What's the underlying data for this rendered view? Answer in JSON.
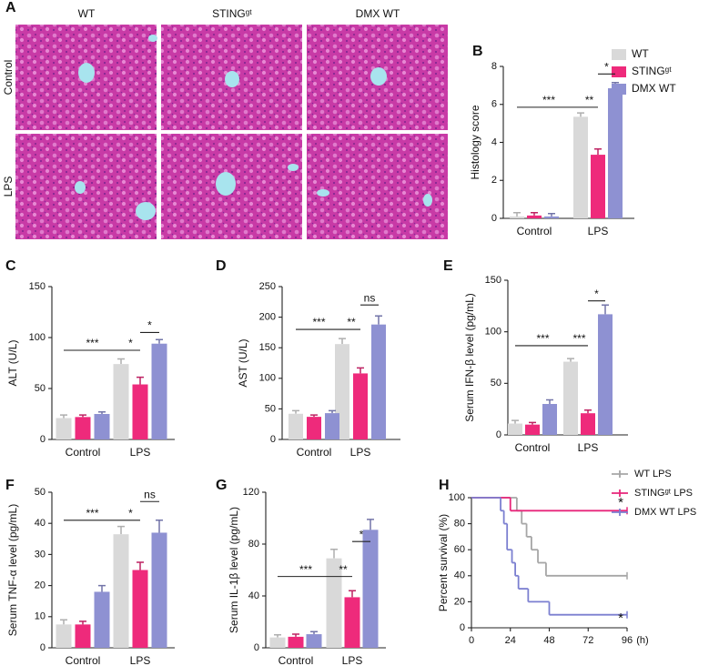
{
  "panel_a": {
    "label": "A",
    "columns": [
      "WT",
      "STINGᵍᵗ",
      "DMX WT"
    ],
    "rows": [
      "Control",
      "LPS"
    ]
  },
  "chart_data": [
    {
      "type": "bar",
      "panel": "B",
      "ylabel": "Histology score",
      "categories": [
        "Control",
        "LPS"
      ],
      "series": [
        {
          "name": "WT",
          "color": "#d9d9d9",
          "values": [
            0.1,
            5.35
          ],
          "errors": [
            0.2,
            0.2
          ]
        },
        {
          "name": "STINGᵍᵗ",
          "color": "#ee2a7b",
          "values": [
            0.15,
            3.35
          ],
          "errors": [
            0.15,
            0.3
          ]
        },
        {
          "name": "DMX WT",
          "color": "#8e91d2",
          "values": [
            0.1,
            6.85
          ],
          "errors": [
            0.15,
            0.3
          ]
        }
      ],
      "ylim": [
        0,
        8
      ],
      "yticks": [
        0,
        2,
        4,
        6,
        8
      ],
      "annotations": [
        "***",
        "**",
        "*"
      ]
    },
    {
      "type": "bar",
      "panel": "C",
      "ylabel": "ALT (U/L)",
      "categories": [
        "Control",
        "LPS"
      ],
      "series": [
        {
          "color": "#d9d9d9",
          "values": [
            21,
            74
          ],
          "errors": [
            3,
            5
          ]
        },
        {
          "color": "#ee2a7b",
          "values": [
            22,
            54
          ],
          "errors": [
            2,
            7
          ]
        },
        {
          "color": "#8e91d2",
          "values": [
            25,
            94
          ],
          "errors": [
            2,
            4
          ]
        }
      ],
      "ylim": [
        0,
        150
      ],
      "yticks": [
        0,
        50,
        100,
        150
      ],
      "annotations": [
        "***",
        "*",
        "*"
      ]
    },
    {
      "type": "bar",
      "panel": "D",
      "ylabel": "AST (U/L)",
      "categories": [
        "Control",
        "LPS"
      ],
      "series": [
        {
          "color": "#d9d9d9",
          "values": [
            42,
            156
          ],
          "errors": [
            5,
            9
          ]
        },
        {
          "color": "#ee2a7b",
          "values": [
            37,
            108
          ],
          "errors": [
            3,
            9
          ]
        },
        {
          "color": "#8e91d2",
          "values": [
            43,
            188
          ],
          "errors": [
            4,
            14
          ]
        }
      ],
      "ylim": [
        0,
        250
      ],
      "yticks": [
        0,
        50,
        100,
        150,
        200,
        250
      ],
      "annotations": [
        "***",
        "**",
        "ns"
      ]
    },
    {
      "type": "bar",
      "panel": "E",
      "ylabel": "Serum IFN-β level (pg/mL)",
      "categories": [
        "Control",
        "LPS"
      ],
      "series": [
        {
          "color": "#d9d9d9",
          "values": [
            11,
            71
          ],
          "errors": [
            3,
            3
          ]
        },
        {
          "color": "#ee2a7b",
          "values": [
            10,
            21
          ],
          "errors": [
            2,
            3
          ]
        },
        {
          "color": "#8e91d2",
          "values": [
            30,
            117
          ],
          "errors": [
            4,
            9
          ]
        }
      ],
      "ylim": [
        0,
        150
      ],
      "yticks": [
        0,
        50,
        100,
        150
      ],
      "annotations": [
        "***",
        "***",
        "*"
      ]
    },
    {
      "type": "bar",
      "panel": "F",
      "ylabel": "Serum TNF-α level (pg/mL)",
      "categories": [
        "Control",
        "LPS"
      ],
      "series": [
        {
          "color": "#d9d9d9",
          "values": [
            7.5,
            36.5
          ],
          "errors": [
            1.5,
            2.5
          ]
        },
        {
          "color": "#ee2a7b",
          "values": [
            7.5,
            25
          ],
          "errors": [
            1,
            2.5
          ]
        },
        {
          "color": "#8e91d2",
          "values": [
            18,
            37
          ],
          "errors": [
            2,
            4
          ]
        }
      ],
      "ylim": [
        0,
        50
      ],
      "yticks": [
        0,
        10,
        20,
        30,
        40,
        50
      ],
      "annotations": [
        "***",
        "*",
        "ns"
      ]
    },
    {
      "type": "bar",
      "panel": "G",
      "ylabel": "Serum IL-1β level (pg/mL)",
      "categories": [
        "Control",
        "LPS"
      ],
      "series": [
        {
          "color": "#d9d9d9",
          "values": [
            8,
            69
          ],
          "errors": [
            2,
            7
          ]
        },
        {
          "color": "#ee2a7b",
          "values": [
            8.5,
            39
          ],
          "errors": [
            2,
            5
          ]
        },
        {
          "color": "#8e91d2",
          "values": [
            10.5,
            91
          ],
          "errors": [
            2,
            8
          ]
        }
      ],
      "ylim": [
        0,
        120
      ],
      "yticks": [
        0,
        40,
        80,
        120
      ],
      "annotations": [
        "***",
        "**",
        "*"
      ]
    },
    {
      "type": "survival",
      "panel": "H",
      "ylabel": "Percent survival (%)",
      "xlabel": "(h)",
      "series": [
        {
          "name": "WT LPS",
          "color": "#a6a6a6",
          "x": [
            0,
            28,
            31,
            34,
            37,
            41,
            46,
            96
          ],
          "values": [
            100,
            90,
            80,
            70,
            60,
            50,
            40,
            40
          ]
        },
        {
          "name": "STINGᵍᵗ LPS",
          "color": "#e8267a",
          "x": [
            0,
            24,
            96
          ],
          "values": [
            100,
            90,
            90
          ]
        },
        {
          "name": "DMX WT LPS",
          "color": "#7b7fd0",
          "x": [
            0,
            18,
            20,
            22,
            25,
            27,
            29,
            35,
            48,
            96
          ],
          "values": [
            100,
            90,
            80,
            60,
            50,
            40,
            30,
            20,
            10,
            10
          ]
        }
      ],
      "xlim": [
        0,
        96
      ],
      "xticks": [
        0,
        24,
        48,
        72,
        96
      ],
      "ylim": [
        0,
        100
      ],
      "yticks": [
        0,
        20,
        40,
        60,
        80,
        100
      ],
      "annotations": [
        "*",
        "*"
      ]
    }
  ]
}
